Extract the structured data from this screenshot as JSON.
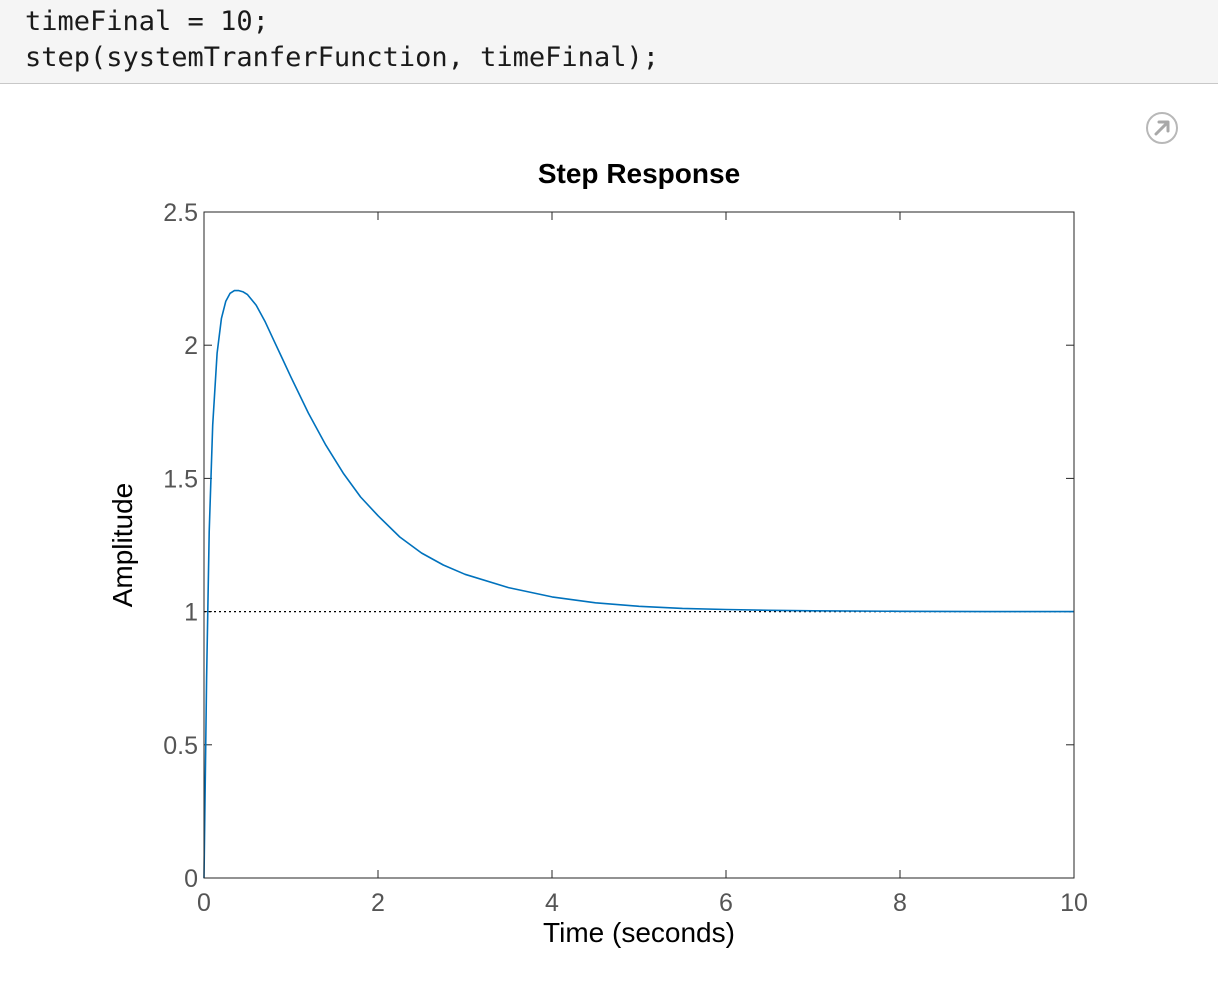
{
  "code": {
    "lines": [
      "timeFinal = 10;",
      "step(systemTranferFunction, timeFinal);"
    ]
  },
  "toolbar": {
    "undock_icon": "export-arrow-icon"
  },
  "chart_data": {
    "type": "line",
    "title": "Step Response",
    "xlabel": "Time (seconds)",
    "ylabel": "Amplitude",
    "xlim": [
      0,
      10
    ],
    "ylim": [
      0,
      2.5
    ],
    "x_ticks": [
      0,
      2,
      4,
      6,
      8,
      10
    ],
    "x_tick_labels": [
      "0",
      "2",
      "4",
      "6",
      "8",
      "10"
    ],
    "y_ticks": [
      0,
      0.5,
      1,
      1.5,
      2,
      2.5
    ],
    "y_tick_labels": [
      "0",
      "0.5",
      "1",
      "1.5",
      "2",
      "2.5"
    ],
    "grid": false,
    "reference_line": {
      "y": 1,
      "style": "dotted",
      "color": "#000000"
    },
    "series": [
      {
        "color": "#0072bd",
        "x": [
          0,
          0.03,
          0.06,
          0.1,
          0.15,
          0.2,
          0.25,
          0.3,
          0.35,
          0.4,
          0.45,
          0.5,
          0.6,
          0.7,
          0.8,
          0.9,
          1.0,
          1.2,
          1.4,
          1.6,
          1.8,
          2.0,
          2.25,
          2.5,
          2.75,
          3.0,
          3.5,
          4.0,
          4.5,
          5.0,
          5.5,
          6.0,
          6.5,
          7.0,
          8.0,
          9.0,
          10.0
        ],
        "y": [
          0,
          0.75,
          1.3,
          1.7,
          1.97,
          2.1,
          2.165,
          2.195,
          2.205,
          2.205,
          2.2,
          2.19,
          2.15,
          2.09,
          2.02,
          1.95,
          1.88,
          1.745,
          1.625,
          1.52,
          1.43,
          1.36,
          1.28,
          1.22,
          1.175,
          1.14,
          1.09,
          1.055,
          1.033,
          1.02,
          1.012,
          1.008,
          1.005,
          1.003,
          1.001,
          1.0,
          1.0
        ]
      }
    ]
  }
}
